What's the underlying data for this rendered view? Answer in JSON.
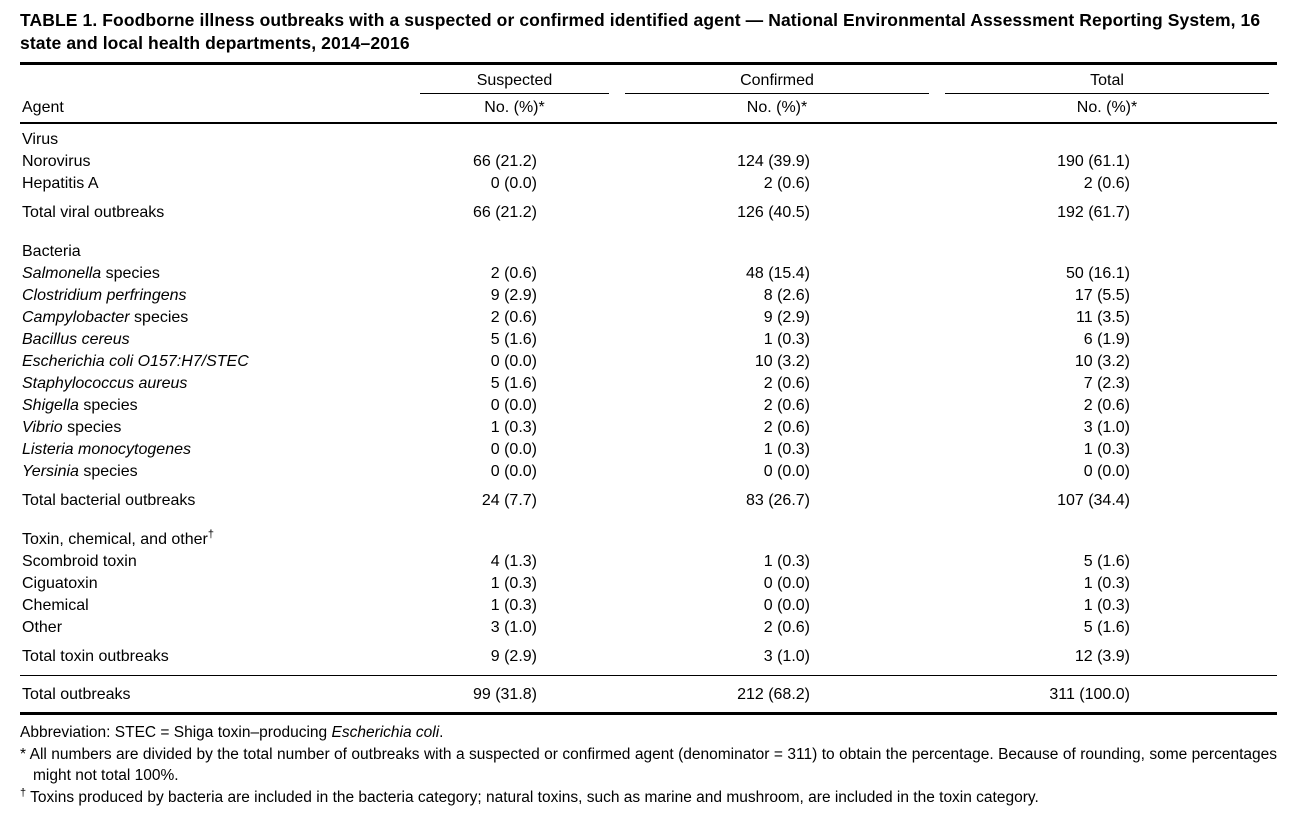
{
  "colors": {
    "text": "#000000",
    "background": "#ffffff",
    "rules": "#000000"
  },
  "title": "TABLE 1. Foodborne illness outbreaks with a suspected or confirmed identified agent — National Environmental Assessment Reporting System, 16 state and local health departments, 2014–2016",
  "columns": {
    "agent_label": "Agent",
    "groups": [
      {
        "label": "Suspected",
        "sub": "No. (%)*"
      },
      {
        "label": "Confirmed",
        "sub": "No. (%)*"
      },
      {
        "label": "Total",
        "sub": "No. (%)*"
      }
    ]
  },
  "sections": [
    {
      "header_segments": [
        {
          "text": "Virus"
        }
      ],
      "rows": [
        {
          "agent_segments": [
            {
              "text": "Norovirus"
            }
          ],
          "suspected": "66 (21.2)",
          "confirmed": "124 (39.9)",
          "total": "190 (61.1)"
        },
        {
          "agent_segments": [
            {
              "text": "Hepatitis A"
            }
          ],
          "suspected": "0 (0.0)",
          "confirmed": "2 (0.6)",
          "total": "2 (0.6)"
        }
      ],
      "total_row": {
        "label": "Total viral outbreaks",
        "suspected": "66 (21.2)",
        "confirmed": "126 (40.5)",
        "total": "192 (61.7)"
      }
    },
    {
      "header_segments": [
        {
          "text": "Bacteria"
        }
      ],
      "rows": [
        {
          "agent_segments": [
            {
              "text": "Salmonella",
              "style": "italic"
            },
            {
              "text": " species"
            }
          ],
          "suspected": "2 (0.6)",
          "confirmed": "48 (15.4)",
          "total": "50 (16.1)"
        },
        {
          "agent_segments": [
            {
              "text": "Clostridium perfringens",
              "style": "italic"
            }
          ],
          "suspected": "9 (2.9)",
          "confirmed": "8 (2.6)",
          "total": "17 (5.5)"
        },
        {
          "agent_segments": [
            {
              "text": "Campylobacter",
              "style": "italic"
            },
            {
              "text": " species"
            }
          ],
          "suspected": "2 (0.6)",
          "confirmed": "9 (2.9)",
          "total": "11 (3.5)"
        },
        {
          "agent_segments": [
            {
              "text": "Bacillus cereus",
              "style": "italic"
            }
          ],
          "suspected": "5 (1.6)",
          "confirmed": "1 (0.3)",
          "total": "6 (1.9)"
        },
        {
          "agent_segments": [
            {
              "text": "Escherichia coli O157:H7/STEC",
              "style": "italic"
            }
          ],
          "suspected": "0 (0.0)",
          "confirmed": "10 (3.2)",
          "total": "10 (3.2)"
        },
        {
          "agent_segments": [
            {
              "text": "Staphylococcus aureus",
              "style": "italic"
            }
          ],
          "suspected": "5 (1.6)",
          "confirmed": "2 (0.6)",
          "total": "7 (2.3)"
        },
        {
          "agent_segments": [
            {
              "text": "Shigella",
              "style": "italic"
            },
            {
              "text": " species"
            }
          ],
          "suspected": "0 (0.0)",
          "confirmed": "2 (0.6)",
          "total": "2 (0.6)"
        },
        {
          "agent_segments": [
            {
              "text": "Vibrio",
              "style": "italic"
            },
            {
              "text": " species"
            }
          ],
          "suspected": "1 (0.3)",
          "confirmed": "2 (0.6)",
          "total": "3 (1.0)"
        },
        {
          "agent_segments": [
            {
              "text": "Listeria monocytogenes",
              "style": "italic"
            }
          ],
          "suspected": "0 (0.0)",
          "confirmed": "1 (0.3)",
          "total": "1 (0.3)"
        },
        {
          "agent_segments": [
            {
              "text": "Yersinia",
              "style": "italic"
            },
            {
              "text": " species"
            }
          ],
          "suspected": "0 (0.0)",
          "confirmed": "0 (0.0)",
          "total": "0 (0.0)"
        }
      ],
      "total_row": {
        "label": "Total bacterial outbreaks",
        "suspected": "24 (7.7)",
        "confirmed": "83 (26.7)",
        "total": "107 (34.4)"
      }
    },
    {
      "header_segments": [
        {
          "text": "Toxin, chemical, and other"
        },
        {
          "text": "†",
          "style": "sup"
        }
      ],
      "rows": [
        {
          "agent_segments": [
            {
              "text": "Scombroid toxin"
            }
          ],
          "suspected": "4 (1.3)",
          "confirmed": "1 (0.3)",
          "total": "5 (1.6)"
        },
        {
          "agent_segments": [
            {
              "text": "Ciguatoxin"
            }
          ],
          "suspected": "1 (0.3)",
          "confirmed": "0 (0.0)",
          "total": "1 (0.3)"
        },
        {
          "agent_segments": [
            {
              "text": "Chemical"
            }
          ],
          "suspected": "1 (0.3)",
          "confirmed": "0 (0.0)",
          "total": "1 (0.3)"
        },
        {
          "agent_segments": [
            {
              "text": "Other"
            }
          ],
          "suspected": "3 (1.0)",
          "confirmed": "2 (0.6)",
          "total": "5 (1.6)"
        }
      ],
      "total_row": {
        "label": "Total toxin outbreaks",
        "suspected": "9 (2.9)",
        "confirmed": "3 (1.0)",
        "total": "12 (3.9)"
      }
    }
  ],
  "grand_total": {
    "label": "Total outbreaks",
    "suspected": "99 (31.8)",
    "confirmed": "212 (68.2)",
    "total": "311 (100.0)"
  },
  "footnotes": [
    {
      "hanging": false,
      "segments": [
        {
          "text": "Abbreviation: STEC = Shiga toxin–producing "
        },
        {
          "text": "Escherichia coli",
          "style": "italic"
        },
        {
          "text": "."
        }
      ]
    },
    {
      "hanging": true,
      "segments": [
        {
          "text": "* All numbers are divided by the total number of outbreaks with a suspected or confirmed agent (denominator = 311) to obtain the percentage. Because of rounding, some percentages might not total 100%."
        }
      ]
    },
    {
      "hanging": true,
      "segments": [
        {
          "text": "†",
          "style": "sup"
        },
        {
          "text": " Toxins produced by bacteria are included in the bacteria category; natural toxins, such as marine and mushroom, are included in the toxin category."
        }
      ]
    }
  ]
}
